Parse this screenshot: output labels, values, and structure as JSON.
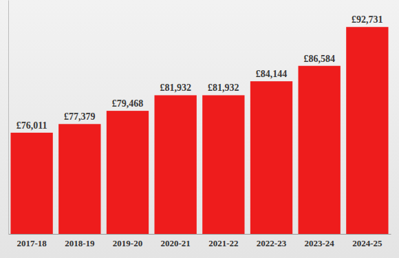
{
  "chart_data": {
    "type": "bar",
    "categories": [
      "2017-18",
      "2018-19",
      "2019-20",
      "2020-21",
      "2021-22",
      "2022-23",
      "2023-24",
      "2024-25"
    ],
    "values": [
      76011,
      77379,
      79468,
      81932,
      81932,
      84144,
      86584,
      92731
    ],
    "value_labels": [
      "£76,011",
      "£77,379",
      "£79,468",
      "£81,932",
      "£81,932",
      "£84,144",
      "£86,584",
      "£92,731"
    ],
    "color": "#ee1c1c",
    "ylim": [
      60000,
      97000
    ],
    "grid": false,
    "data_labels": true,
    "tick_labels": "x"
  }
}
